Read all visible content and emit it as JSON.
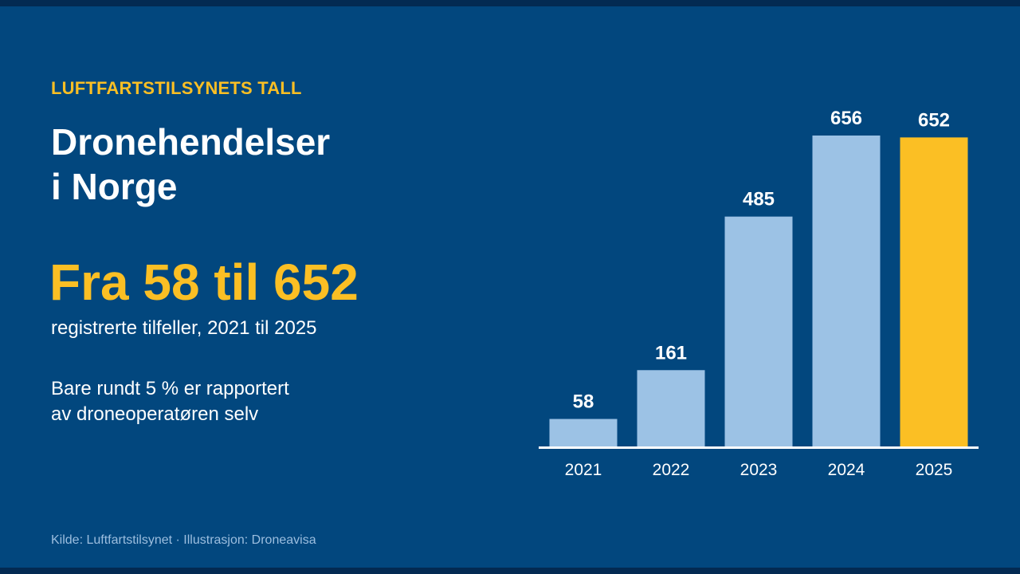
{
  "kicker": "LUFTFARTSTILSYNETS TALL",
  "title": {
    "line1": "Dronehendelser",
    "line2": "i Norge"
  },
  "headline": "Fra 58 til 652",
  "subheadline": "registrerte tilfeller, 2021 til 2025",
  "note": {
    "line1": "Bare rundt 5 % er rapportert",
    "line2": "av droneoperatøren selv"
  },
  "footer": "Kilde: Luftfartstilsynet  ·  Illustrasjon: Droneavisa",
  "colors": {
    "background": "#02477E",
    "bar": "#9CC2E5",
    "highlight": "#FBBF24",
    "text": "#FFFFFF"
  },
  "chart_data": {
    "type": "bar",
    "categories": [
      "2021",
      "2022",
      "2023",
      "2024",
      "2025"
    ],
    "values": [
      58,
      161,
      485,
      656,
      652
    ],
    "data_labels": [
      "58",
      "161",
      "485",
      "656",
      "652"
    ],
    "highlight_category": "2025",
    "ylim": [
      0,
      656
    ],
    "grid": false,
    "legend": "none"
  }
}
